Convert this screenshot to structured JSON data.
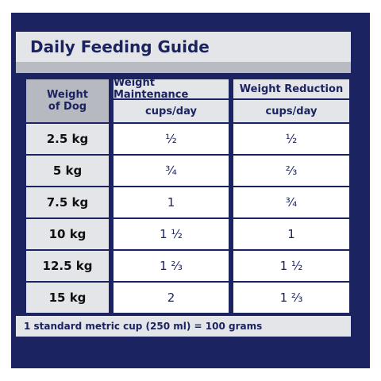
{
  "title": "Daily Feeding Guide",
  "headers": {
    "weight_line1": "Weight",
    "weight_line2": "of Dog",
    "maintenance": "Weight Maintenance",
    "reduction": "Weight Reduction",
    "unit_maintenance": "cups/day",
    "unit_reduction": "cups/day"
  },
  "rows": [
    {
      "weight": "2.5 kg",
      "maintenance": "½",
      "reduction": "½"
    },
    {
      "weight": "5 kg",
      "maintenance": "¾",
      "reduction": "⅔"
    },
    {
      "weight": "7.5 kg",
      "maintenance": "1",
      "reduction": "¾"
    },
    {
      "weight": "10 kg",
      "maintenance": "1 ½",
      "reduction": "1"
    },
    {
      "weight": "12.5 kg",
      "maintenance": "1 ⅔",
      "reduction": "1 ½"
    },
    {
      "weight": "15 kg",
      "maintenance": "2",
      "reduction": "1 ⅔"
    }
  ],
  "footer": "1 standard metric cup (250 ml) = 100 grams"
}
